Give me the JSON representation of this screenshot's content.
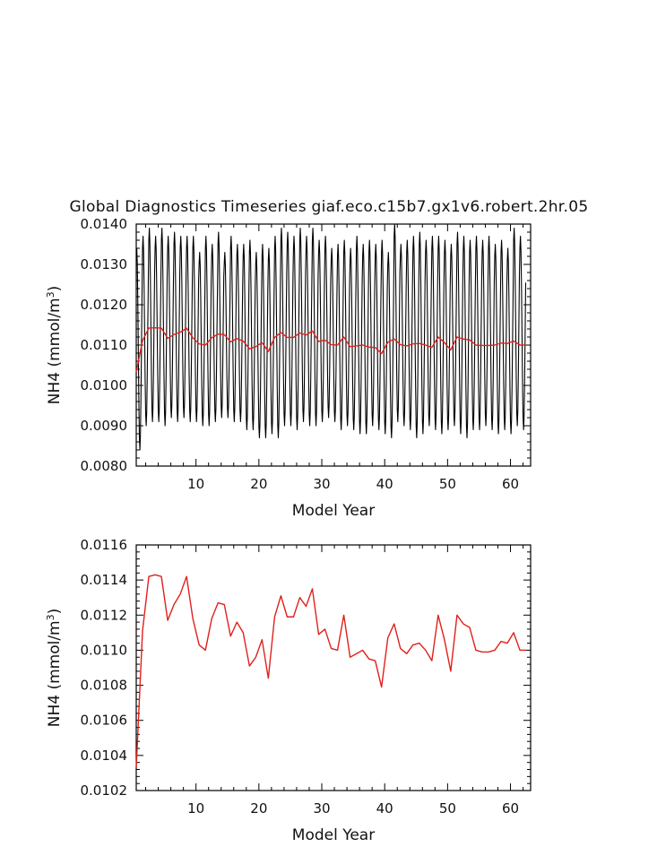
{
  "title": "Global Diagnostics Timeseries giaf.eco.c15b7.gx1v6.robert.2hr.05",
  "chart_data": [
    {
      "type": "line",
      "xlabel": "Model Year",
      "ylabel": "NH4 (mmol/m",
      "ylabel_sup": "3",
      "ylabel_close": ")",
      "xlim": [
        0.5,
        63.2
      ],
      "ylim": [
        0.008,
        0.014
      ],
      "xticks": [
        10,
        20,
        30,
        40,
        50,
        60
      ],
      "yticks": [
        "0.0080",
        "0.0090",
        "0.0100",
        "0.0110",
        "0.0120",
        "0.0130",
        "0.0140"
      ],
      "ytick_values": [
        0.008,
        0.009,
        0.01,
        0.011,
        0.012,
        0.013,
        0.014
      ],
      "series": [
        {
          "color": "#000000",
          "kind": "monthly",
          "monthly_high": [
            0.0134,
            0.0137,
            0.0139,
            0.0137,
            0.0139,
            0.0137,
            0.0138,
            0.0137,
            0.0137,
            0.0137,
            0.0133,
            0.0137,
            0.0135,
            0.0138,
            0.0133,
            0.0137,
            0.0135,
            0.0135,
            0.0136,
            0.0133,
            0.0135,
            0.0134,
            0.0137,
            0.0139,
            0.0138,
            0.0137,
            0.0139,
            0.0137,
            0.0139,
            0.0136,
            0.0137,
            0.0134,
            0.0135,
            0.0136,
            0.0134,
            0.0137,
            0.0135,
            0.0136,
            0.0135,
            0.0136,
            0.0133,
            0.014,
            0.0135,
            0.0136,
            0.0137,
            0.0138,
            0.0136,
            0.0137,
            0.0137,
            0.0136,
            0.0135,
            0.0138,
            0.0137,
            0.0136,
            0.0137,
            0.0136,
            0.0137,
            0.0135,
            0.0136,
            0.0134,
            0.0139,
            0.0137
          ],
          "monthly_low": [
            0.0084,
            0.009,
            0.0091,
            0.0091,
            0.009,
            0.0092,
            0.0091,
            0.0092,
            0.0091,
            0.0091,
            0.009,
            0.009,
            0.0091,
            0.0092,
            0.0092,
            0.0091,
            0.0091,
            0.0089,
            0.0089,
            0.0087,
            0.0087,
            0.0088,
            0.0087,
            0.009,
            0.009,
            0.0089,
            0.0091,
            0.009,
            0.009,
            0.0091,
            0.0092,
            0.0091,
            0.0089,
            0.009,
            0.0089,
            0.0088,
            0.0088,
            0.009,
            0.0089,
            0.0088,
            0.0087,
            0.0091,
            0.009,
            0.0089,
            0.0087,
            0.0088,
            0.009,
            0.0089,
            0.0088,
            0.0089,
            0.009,
            0.0088,
            0.0087,
            0.0089,
            0.0089,
            0.009,
            0.0089,
            0.0088,
            0.0089,
            0.0088,
            0.009,
            0.0089
          ]
        },
        {
          "color": "#e0201c",
          "kind": "annual",
          "x": [
            0.5,
            1.5,
            2.5,
            3.5,
            4.5,
            5.5,
            6.5,
            7.5,
            8.5,
            9.5,
            10.5,
            11.5,
            12.5,
            13.5,
            14.5,
            15.5,
            16.5,
            17.5,
            18.5,
            19.5,
            20.5,
            21.5,
            22.5,
            23.5,
            24.5,
            25.5,
            26.5,
            27.5,
            28.5,
            29.5,
            30.5,
            31.5,
            32.5,
            33.5,
            34.5,
            35.5,
            36.5,
            37.5,
            38.5,
            39.5,
            40.5,
            41.5,
            42.5,
            43.5,
            44.5,
            45.5,
            46.5,
            47.5,
            48.5,
            49.5,
            50.5,
            51.5,
            52.5,
            53.5,
            54.5,
            55.5,
            56.5,
            57.5,
            58.5,
            59.5,
            60.5,
            61.5,
            62.5
          ],
          "values": [
            0.01033,
            0.01111,
            0.01142,
            0.01143,
            0.01142,
            0.01117,
            0.01126,
            0.01132,
            0.01142,
            0.01118,
            0.01103,
            0.011,
            0.01118,
            0.01127,
            0.01126,
            0.01108,
            0.01116,
            0.0111,
            0.01091,
            0.01096,
            0.01106,
            0.01084,
            0.01119,
            0.01131,
            0.01119,
            0.01119,
            0.0113,
            0.01125,
            0.01135,
            0.01109,
            0.01112,
            0.01101,
            0.011,
            0.0112,
            0.01096,
            0.01098,
            0.011,
            0.01095,
            0.01094,
            0.01079,
            0.01107,
            0.01115,
            0.01101,
            0.01098,
            0.01103,
            0.01104,
            0.011,
            0.01094,
            0.0112,
            0.01106,
            0.01088,
            0.0112,
            0.01115,
            0.01113,
            0.011,
            0.01099,
            0.01099,
            0.011,
            0.01105,
            0.01104,
            0.0111,
            0.011,
            0.011
          ]
        }
      ]
    },
    {
      "type": "line",
      "xlabel": "Model Year",
      "ylabel": "NH4 (mmol/m",
      "ylabel_sup": "3",
      "ylabel_close": ")",
      "xlim": [
        0.5,
        63.2
      ],
      "ylim": [
        0.0102,
        0.0116
      ],
      "xticks": [
        10,
        20,
        30,
        40,
        50,
        60
      ],
      "yticks": [
        "0.0102",
        "0.0104",
        "0.0106",
        "0.0108",
        "0.0110",
        "0.0112",
        "0.0114",
        "0.0116"
      ],
      "ytick_values": [
        0.0102,
        0.0104,
        0.0106,
        0.0108,
        0.011,
        0.0112,
        0.0114,
        0.0116
      ],
      "series": [
        {
          "color": "#e0201c",
          "kind": "annual",
          "x": [
            0.5,
            1.5,
            2.5,
            3.5,
            4.5,
            5.5,
            6.5,
            7.5,
            8.5,
            9.5,
            10.5,
            11.5,
            12.5,
            13.5,
            14.5,
            15.5,
            16.5,
            17.5,
            18.5,
            19.5,
            20.5,
            21.5,
            22.5,
            23.5,
            24.5,
            25.5,
            26.5,
            27.5,
            28.5,
            29.5,
            30.5,
            31.5,
            32.5,
            33.5,
            34.5,
            35.5,
            36.5,
            37.5,
            38.5,
            39.5,
            40.5,
            41.5,
            42.5,
            43.5,
            44.5,
            45.5,
            46.5,
            47.5,
            48.5,
            49.5,
            50.5,
            51.5,
            52.5,
            53.5,
            54.5,
            55.5,
            56.5,
            57.5,
            58.5,
            59.5,
            60.5,
            61.5,
            62.5
          ],
          "values": [
            0.01033,
            0.01111,
            0.01142,
            0.01143,
            0.01142,
            0.01117,
            0.01126,
            0.01132,
            0.01142,
            0.01118,
            0.01103,
            0.011,
            0.01118,
            0.01127,
            0.01126,
            0.01108,
            0.01116,
            0.0111,
            0.01091,
            0.01096,
            0.01106,
            0.01084,
            0.01119,
            0.01131,
            0.01119,
            0.01119,
            0.0113,
            0.01125,
            0.01135,
            0.01109,
            0.01112,
            0.01101,
            0.011,
            0.0112,
            0.01096,
            0.01098,
            0.011,
            0.01095,
            0.01094,
            0.01079,
            0.01107,
            0.01115,
            0.01101,
            0.01098,
            0.01103,
            0.01104,
            0.011,
            0.01094,
            0.0112,
            0.01106,
            0.01088,
            0.0112,
            0.01115,
            0.01113,
            0.011,
            0.01099,
            0.01099,
            0.011,
            0.01105,
            0.01104,
            0.0111,
            0.011,
            0.011
          ]
        }
      ]
    }
  ]
}
